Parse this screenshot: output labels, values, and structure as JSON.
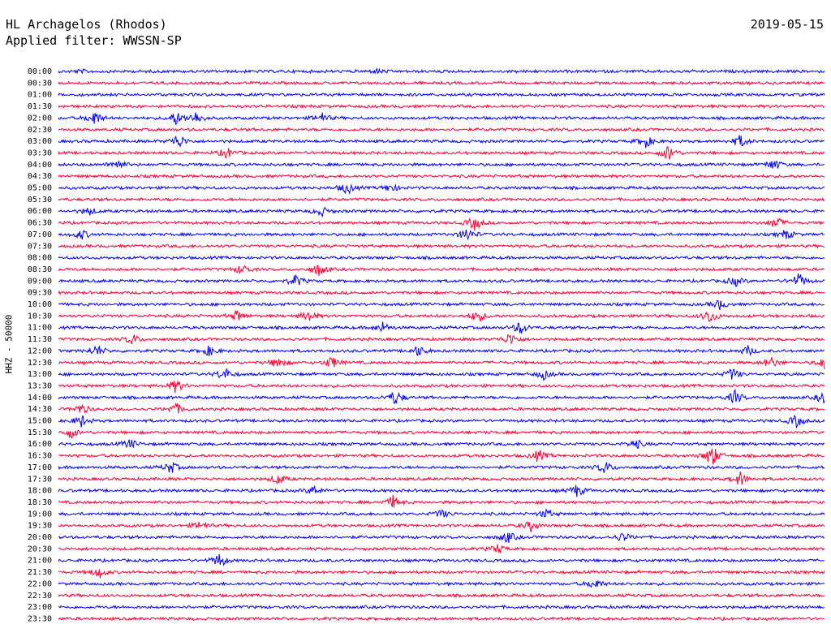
{
  "header": {
    "station": "HL Archagelos (Rhodos)",
    "filter": "Applied filter: WWSSN-SP",
    "date": "2019-05-15"
  },
  "axis": {
    "ylabel": "HHZ - 50000"
  },
  "colors": {
    "even_trace": "#0000ff",
    "odd_trace": "#ff0033"
  },
  "chart_data": {
    "type": "line",
    "title": "HL Archagelos (Rhodos)",
    "subtitle": "Applied filter: WWSSN-SP",
    "ylabel": "HHZ - 50000",
    "tick_labels": [
      "00:00",
      "00:30",
      "01:00",
      "01:30",
      "02:00",
      "02:30",
      "03:00",
      "03:30",
      "04:00",
      "04:30",
      "05:00",
      "05:30",
      "06:00",
      "06:30",
      "07:00",
      "07:30",
      "08:00",
      "08:30",
      "09:00",
      "09:30",
      "10:00",
      "10:30",
      "11:00",
      "11:30",
      "12:00",
      "12:30",
      "13:00",
      "13:30",
      "14:00",
      "14:30",
      "15:00",
      "15:30",
      "16:00",
      "16:30",
      "17:00",
      "17:30",
      "18:00",
      "18:30",
      "19:00",
      "19:30",
      "20:00",
      "20:30",
      "21:00",
      "21:30",
      "22:00",
      "22:30",
      "23:00",
      "23:30"
    ],
    "series_colors": [
      "blue",
      "red"
    ],
    "events": [
      {
        "row": 0,
        "minute": 12.5,
        "amp": 0.4
      },
      {
        "row": 0,
        "minute": 0.9,
        "amp": 0.3
      },
      {
        "row": 4,
        "minute": 1.4,
        "amp": 1.6
      },
      {
        "row": 4,
        "minute": 4.6,
        "amp": 1.4
      },
      {
        "row": 4,
        "minute": 5.4,
        "amp": 1.4
      },
      {
        "row": 4,
        "minute": 10.3,
        "amp": 1.1
      },
      {
        "row": 6,
        "minute": 4.7,
        "amp": 1.5
      },
      {
        "row": 6,
        "minute": 23.0,
        "amp": 1.3
      },
      {
        "row": 6,
        "minute": 26.7,
        "amp": 1.3
      },
      {
        "row": 7,
        "minute": 23.9,
        "amp": 1.8
      },
      {
        "row": 7,
        "minute": 6.6,
        "amp": 1.1
      },
      {
        "row": 8,
        "minute": 2.3,
        "amp": 1.2
      },
      {
        "row": 8,
        "minute": 28.0,
        "amp": 1.2
      },
      {
        "row": 10,
        "minute": 11.3,
        "amp": 1.3
      },
      {
        "row": 10,
        "minute": 13.0,
        "amp": 0.9
      },
      {
        "row": 12,
        "minute": 10.3,
        "amp": 1.0
      },
      {
        "row": 12,
        "minute": 1.2,
        "amp": 0.8
      },
      {
        "row": 13,
        "minute": 16.3,
        "amp": 1.5
      },
      {
        "row": 13,
        "minute": 28.1,
        "amp": 1.3
      },
      {
        "row": 14,
        "minute": 0.9,
        "amp": 1.0
      },
      {
        "row": 14,
        "minute": 16.0,
        "amp": 1.4
      },
      {
        "row": 14,
        "minute": 28.5,
        "amp": 1.0
      },
      {
        "row": 17,
        "minute": 7.2,
        "amp": 1.1
      },
      {
        "row": 17,
        "minute": 10.2,
        "amp": 1.3
      },
      {
        "row": 18,
        "minute": 9.3,
        "amp": 1.2
      },
      {
        "row": 18,
        "minute": 26.5,
        "amp": 1.0
      },
      {
        "row": 18,
        "minute": 29.0,
        "amp": 1.6
      },
      {
        "row": 20,
        "minute": 25.9,
        "amp": 1.0
      },
      {
        "row": 21,
        "minute": 7.0,
        "amp": 1.2
      },
      {
        "row": 21,
        "minute": 9.8,
        "amp": 1.3
      },
      {
        "row": 21,
        "minute": 16.4,
        "amp": 1.4
      },
      {
        "row": 21,
        "minute": 25.5,
        "amp": 1.5
      },
      {
        "row": 22,
        "minute": 12.7,
        "amp": 1.1
      },
      {
        "row": 22,
        "minute": 18.1,
        "amp": 1.4
      },
      {
        "row": 23,
        "minute": 2.9,
        "amp": 1.1
      },
      {
        "row": 23,
        "minute": 17.7,
        "amp": 1.3
      },
      {
        "row": 24,
        "minute": 1.5,
        "amp": 1.2
      },
      {
        "row": 24,
        "minute": 5.9,
        "amp": 1.0
      },
      {
        "row": 24,
        "minute": 14.1,
        "amp": 1.1
      },
      {
        "row": 24,
        "minute": 27.0,
        "amp": 1.0
      },
      {
        "row": 25,
        "minute": 8.6,
        "amp": 1.3
      },
      {
        "row": 25,
        "minute": 10.7,
        "amp": 1.3
      },
      {
        "row": 25,
        "minute": 27.9,
        "amp": 1.2
      },
      {
        "row": 25,
        "minute": 30.0,
        "amp": 1.3
      },
      {
        "row": 26,
        "minute": 6.5,
        "amp": 1.4
      },
      {
        "row": 26,
        "minute": 19.0,
        "amp": 1.0
      },
      {
        "row": 26,
        "minute": 26.4,
        "amp": 1.3
      },
      {
        "row": 27,
        "minute": 4.6,
        "amp": 1.4
      },
      {
        "row": 28,
        "minute": 13.2,
        "amp": 1.6
      },
      {
        "row": 28,
        "minute": 26.5,
        "amp": 1.4
      },
      {
        "row": 28,
        "minute": 30.0,
        "amp": 1.5
      },
      {
        "row": 29,
        "minute": 0.9,
        "amp": 1.1
      },
      {
        "row": 29,
        "minute": 4.6,
        "amp": 1.2
      },
      {
        "row": 30,
        "minute": 0.9,
        "amp": 1.2
      },
      {
        "row": 30,
        "minute": 28.9,
        "amp": 1.3
      },
      {
        "row": 31,
        "minute": 0.5,
        "amp": 1.2
      },
      {
        "row": 32,
        "minute": 2.8,
        "amp": 1.0
      },
      {
        "row": 32,
        "minute": 22.6,
        "amp": 1.0
      },
      {
        "row": 33,
        "minute": 18.8,
        "amp": 1.3
      },
      {
        "row": 33,
        "minute": 25.6,
        "amp": 2.4
      },
      {
        "row": 34,
        "minute": 4.4,
        "amp": 1.3
      },
      {
        "row": 34,
        "minute": 21.4,
        "amp": 1.3
      },
      {
        "row": 35,
        "minute": 8.6,
        "amp": 1.2
      },
      {
        "row": 35,
        "minute": 26.7,
        "amp": 1.5
      },
      {
        "row": 36,
        "minute": 10.0,
        "amp": 1.0
      },
      {
        "row": 36,
        "minute": 20.3,
        "amp": 1.3
      },
      {
        "row": 37,
        "minute": 13.1,
        "amp": 1.3
      },
      {
        "row": 38,
        "minute": 15.0,
        "amp": 0.9
      },
      {
        "row": 38,
        "minute": 19.1,
        "amp": 0.9
      },
      {
        "row": 39,
        "minute": 5.6,
        "amp": 1.0
      },
      {
        "row": 39,
        "minute": 18.5,
        "amp": 1.1
      },
      {
        "row": 40,
        "minute": 17.6,
        "amp": 1.2
      },
      {
        "row": 40,
        "minute": 22.1,
        "amp": 1.0
      },
      {
        "row": 41,
        "minute": 17.2,
        "amp": 0.9
      },
      {
        "row": 42,
        "minute": 6.3,
        "amp": 1.5
      },
      {
        "row": 43,
        "minute": 1.6,
        "amp": 1.2
      },
      {
        "row": 44,
        "minute": 21.0,
        "amp": 1.2
      }
    ]
  }
}
